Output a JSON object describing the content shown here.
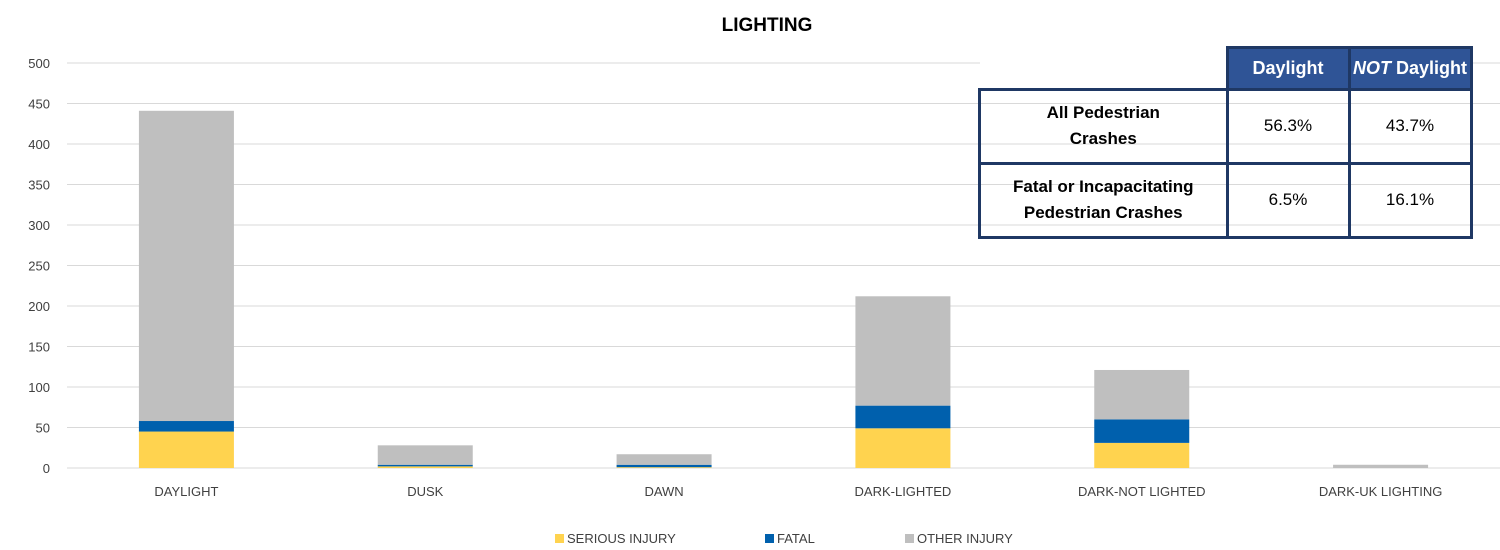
{
  "chart_data": {
    "type": "bar",
    "stacked": true,
    "title": "LIGHTING",
    "xlabel": "",
    "ylabel": "",
    "ylim": [
      0,
      500
    ],
    "yticks": [
      0,
      50,
      100,
      150,
      200,
      250,
      300,
      350,
      400,
      450,
      500
    ],
    "grid": true,
    "legend": "bottom",
    "categories": [
      "DAYLIGHT",
      "DUSK",
      "DAWN",
      "DARK-LIGHTED",
      "DARK-NOT LIGHTED",
      "DARK-UK LIGHTING"
    ],
    "series": [
      {
        "name": "SERIOUS INJURY",
        "color": "#ffd34f",
        "values": [
          45,
          2,
          1,
          49,
          31,
          0
        ]
      },
      {
        "name": "FATAL",
        "color": "#0060ad",
        "values": [
          13,
          2,
          3,
          28,
          29,
          0
        ]
      },
      {
        "name": "OTHER INJURY",
        "color": "#bfbfbf",
        "values": [
          383,
          24,
          13,
          135,
          61,
          4
        ]
      }
    ]
  },
  "table": {
    "headers": [
      "Daylight",
      "NOT",
      "Daylight"
    ],
    "rows": [
      {
        "label_line1": "All Pedestrian",
        "label_line2": "Crashes",
        "daylight": "56.3%",
        "not_daylight": "43.7%"
      },
      {
        "label_line1": "Fatal or Incapacitating",
        "label_line2": "Pedestrian Crashes",
        "daylight": "6.5%",
        "not_daylight": "16.1%"
      }
    ],
    "border_color": "#1f3864",
    "header_color": "#2f5496"
  }
}
